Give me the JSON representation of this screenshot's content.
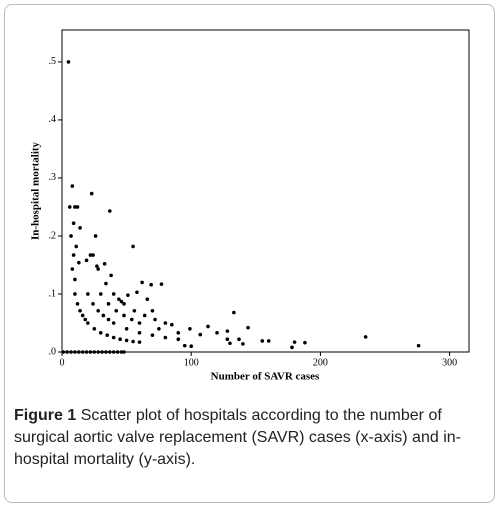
{
  "chart_data": {
    "type": "scatter",
    "xlabel": "Number of SAVR cases",
    "ylabel": "In-hospital mortality",
    "caption_label": "Figure 1",
    "caption_text": "Scatter plot of hospitals according to the number of surgical aortic valve replacement (SAVR) cases (x-axis) and in-hospital mortality (y-axis).",
    "color": "#000000",
    "xlim": [
      0,
      315
    ],
    "ylim": [
      0,
      0.555
    ],
    "xticks": [
      0,
      100,
      200,
      300
    ],
    "yticks": [
      {
        "value": 0,
        "label": ".0"
      },
      {
        "value": 0.1,
        "label": ".1"
      },
      {
        "value": 0.2,
        "label": ".2"
      },
      {
        "value": 0.3,
        "label": ".3"
      },
      {
        "value": 0.4,
        "label": ".4"
      },
      {
        "value": 0.5,
        "label": ".5"
      }
    ],
    "x": [
      1,
      4,
      7,
      10,
      13,
      16,
      19,
      22,
      25,
      28,
      31,
      34,
      37,
      40,
      43,
      46,
      48,
      10,
      12,
      14,
      16,
      18,
      20,
      25,
      30,
      35,
      40,
      45,
      50,
      55,
      60,
      20,
      24,
      28,
      32,
      36,
      40,
      50,
      60,
      70,
      80,
      90,
      30,
      36,
      42,
      48,
      54,
      60,
      75,
      90,
      40,
      48,
      56,
      64,
      72,
      80,
      5,
      6,
      8,
      7,
      9,
      10,
      12,
      11,
      14,
      13,
      9,
      8,
      10,
      23,
      26,
      37,
      19,
      22,
      24,
      27,
      28,
      33,
      34,
      38,
      55,
      62,
      69,
      77,
      58,
      51,
      44,
      46,
      66,
      70,
      85,
      99,
      113,
      120,
      128,
      133,
      137,
      144,
      155,
      160,
      180,
      188,
      235,
      276,
      178,
      140,
      128,
      100,
      95,
      130,
      107
    ],
    "values": [
      0,
      0,
      0,
      0,
      0,
      0,
      0,
      0,
      0,
      0,
      0,
      0,
      0,
      0,
      0,
      0,
      0,
      0.1,
      0.083,
      0.071,
      0.063,
      0.056,
      0.05,
      0.04,
      0.033,
      0.029,
      0.025,
      0.022,
      0.02,
      0.018,
      0.017,
      0.1,
      0.083,
      0.071,
      0.063,
      0.056,
      0.05,
      0.04,
      0.033,
      0.029,
      0.025,
      0.022,
      0.1,
      0.083,
      0.071,
      0.063,
      0.056,
      0.05,
      0.04,
      0.033,
      0.1,
      0.083,
      0.071,
      0.063,
      0.056,
      0.05,
      0.5,
      0.25,
      0.286,
      0.2,
      0.222,
      0.25,
      0.25,
      0.182,
      0.214,
      0.154,
      0.167,
      0.143,
      0.125,
      0.273,
      0.2,
      0.243,
      0.158,
      0.167,
      0.167,
      0.148,
      0.143,
      0.152,
      0.118,
      0.132,
      0.182,
      0.12,
      0.116,
      0.117,
      0.103,
      0.098,
      0.091,
      0.087,
      0.091,
      0.071,
      0.047,
      0.04,
      0.044,
      0.033,
      0.036,
      0.068,
      0.022,
      0.042,
      0.019,
      0.019,
      0.017,
      0.016,
      0.026,
      0.011,
      0.008,
      0.014,
      0.022,
      0.01,
      0.011,
      0.015,
      0.03
    ]
  }
}
